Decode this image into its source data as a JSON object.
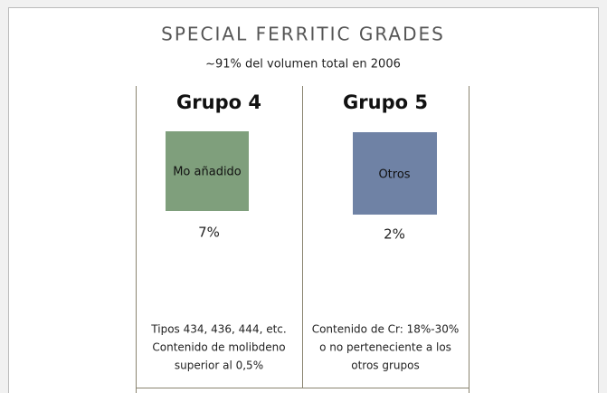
{
  "header": {
    "title": "SPECIAL FERRITIC GRADES",
    "subtitle": "~91% del volumen total en 2006"
  },
  "groups": [
    {
      "name": "Grupo 4",
      "box_label": "Mo añadido",
      "percent": "7%",
      "description": [
        "Tipos 434, 436, 444, etc.",
        "Contenido de molibdeno",
        "superior al 0,5%"
      ]
    },
    {
      "name": "Grupo 5",
      "box_label": "Otros",
      "percent": "2%",
      "description": [
        "Contenido de Cr: 18%-30%",
        "o no perteneciente a los",
        "otros grupos"
      ]
    }
  ]
}
